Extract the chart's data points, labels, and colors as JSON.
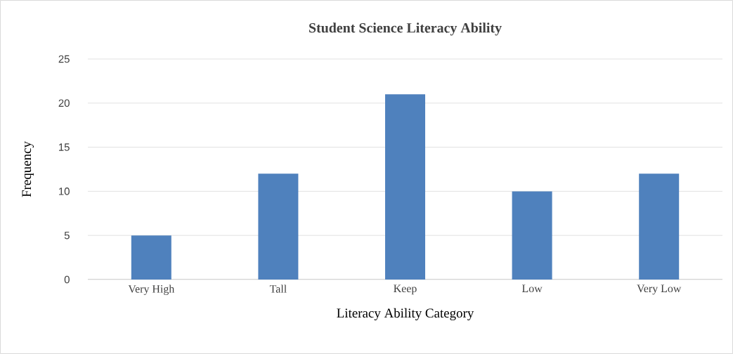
{
  "chart_data": {
    "type": "bar",
    "title": "Student Science Literacy Ability",
    "xlabel": "Literacy Ability Category",
    "ylabel": "Frequency",
    "categories": [
      "Very High",
      "Tall",
      "Keep",
      "Low",
      "Very Low"
    ],
    "values": [
      5,
      12,
      21,
      10,
      12
    ],
    "color": "#4f81bd",
    "ylim": [
      0,
      25
    ],
    "yticks": [
      0,
      5,
      10,
      15,
      20,
      25
    ],
    "grid": "y"
  }
}
